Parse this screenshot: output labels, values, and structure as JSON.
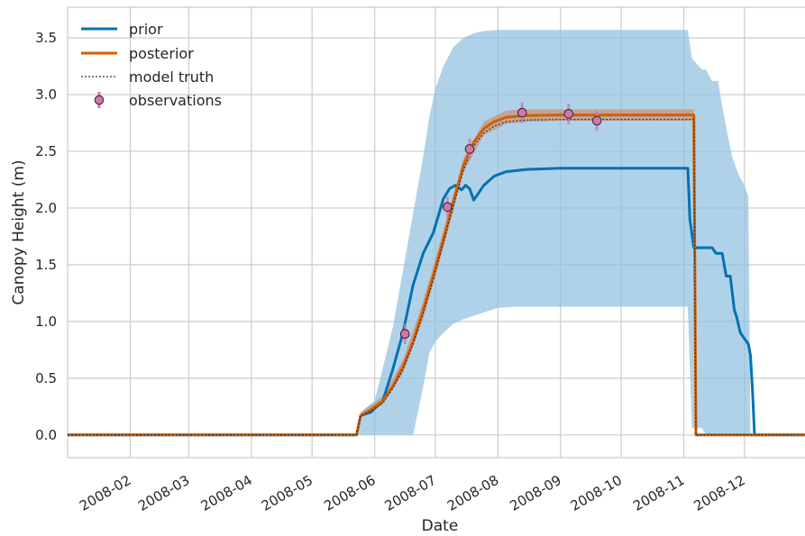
{
  "chart_data": {
    "type": "line",
    "title": "",
    "xlabel": "Date",
    "ylabel": "Canopy Height (m)",
    "x_range": [
      "2008-01-01",
      "2008-12-31"
    ],
    "ylim": [
      -0.2,
      3.77
    ],
    "grid": true,
    "legend_position": "top-left",
    "x_ticks": [
      "2008-02",
      "2008-03",
      "2008-04",
      "2008-05",
      "2008-06",
      "2008-07",
      "2008-08",
      "2008-09",
      "2008-10",
      "2008-11",
      "2008-12"
    ],
    "y_ticks": [
      "0.0",
      "0.5",
      "1.0",
      "1.5",
      "2.0",
      "2.5",
      "3.0",
      "3.5"
    ],
    "legend": [
      "prior",
      "posterior",
      "model truth",
      "observations"
    ],
    "colors": {
      "prior": "#0072b2",
      "prior_band": "#8fbfe0",
      "posterior": "#d55e00",
      "posterior_band": "#c8957a",
      "truth": "#333333",
      "obs_fill": "#cc79a7",
      "obs_edge": "#3a2030",
      "grid": "#cccccc"
    },
    "series": [
      {
        "name": "prior",
        "x": [
          "2008-01-01",
          "2008-05-23",
          "2008-05-25",
          "2008-05-30",
          "2008-06-05",
          "2008-06-10",
          "2008-06-15",
          "2008-06-20",
          "2008-06-25",
          "2008-06-30",
          "2008-07-05",
          "2008-07-08",
          "2008-07-11",
          "2008-07-14",
          "2008-07-16",
          "2008-07-18",
          "2008-07-20",
          "2008-07-22",
          "2008-07-25",
          "2008-07-30",
          "2008-08-05",
          "2008-08-15",
          "2008-09-01",
          "2008-10-01",
          "2008-11-03",
          "2008-11-04",
          "2008-11-06",
          "2008-11-15",
          "2008-11-17",
          "2008-11-20",
          "2008-11-22",
          "2008-11-24",
          "2008-11-26",
          "2008-11-27",
          "2008-11-29",
          "2008-12-01",
          "2008-12-03",
          "2008-12-04",
          "2008-12-05",
          "2008-12-06",
          "2008-12-31"
        ],
        "values": [
          0,
          0,
          0.17,
          0.2,
          0.3,
          0.58,
          0.9,
          1.32,
          1.6,
          1.78,
          2.08,
          2.17,
          2.2,
          2.16,
          2.2,
          2.17,
          2.07,
          2.12,
          2.2,
          2.28,
          2.32,
          2.34,
          2.35,
          2.35,
          2.35,
          1.9,
          1.65,
          1.65,
          1.6,
          1.6,
          1.4,
          1.4,
          1.1,
          1.05,
          0.9,
          0.85,
          0.8,
          0.7,
          0.4,
          0,
          0
        ]
      },
      {
        "name": "posterior",
        "x": [
          "2008-01-01",
          "2008-05-23",
          "2008-05-25",
          "2008-05-30",
          "2008-06-05",
          "2008-06-10",
          "2008-06-15",
          "2008-06-20",
          "2008-06-25",
          "2008-06-30",
          "2008-07-05",
          "2008-07-10",
          "2008-07-15",
          "2008-07-20",
          "2008-07-25",
          "2008-07-30",
          "2008-08-05",
          "2008-08-15",
          "2008-09-01",
          "2008-10-01",
          "2008-11-06",
          "2008-11-07",
          "2008-12-31"
        ],
        "values": [
          0,
          0,
          0.17,
          0.22,
          0.3,
          0.43,
          0.6,
          0.82,
          1.1,
          1.4,
          1.72,
          2.06,
          2.38,
          2.58,
          2.7,
          2.76,
          2.8,
          2.815,
          2.82,
          2.82,
          2.82,
          0,
          0
        ]
      },
      {
        "name": "model truth",
        "x": [
          "2008-01-01",
          "2008-05-23",
          "2008-05-25",
          "2008-05-30",
          "2008-06-05",
          "2008-06-10",
          "2008-06-15",
          "2008-06-20",
          "2008-06-25",
          "2008-06-30",
          "2008-07-05",
          "2008-07-10",
          "2008-07-15",
          "2008-07-20",
          "2008-07-25",
          "2008-07-30",
          "2008-08-05",
          "2008-08-15",
          "2008-09-01",
          "2008-10-01",
          "2008-11-06",
          "2008-11-07",
          "2008-12-31"
        ],
        "values": [
          0,
          0,
          0.17,
          0.21,
          0.28,
          0.41,
          0.58,
          0.8,
          1.07,
          1.37,
          1.7,
          2.02,
          2.34,
          2.55,
          2.66,
          2.72,
          2.76,
          2.775,
          2.78,
          2.78,
          2.78,
          0,
          0
        ]
      }
    ],
    "prior_band": {
      "x": [
        "2008-01-01",
        "2008-05-23",
        "2008-05-25",
        "2008-06-01",
        "2008-06-10",
        "2008-06-15",
        "2008-06-20",
        "2008-06-25",
        "2008-06-28",
        "2008-07-01",
        "2008-07-05",
        "2008-07-10",
        "2008-07-15",
        "2008-07-20",
        "2008-07-25",
        "2008-08-01",
        "2008-08-10",
        "2008-08-20",
        "2008-09-01",
        "2008-10-01",
        "2008-11-03",
        "2008-11-05",
        "2008-11-10",
        "2008-11-12",
        "2008-11-15",
        "2008-11-18",
        "2008-11-20",
        "2008-11-23",
        "2008-11-25",
        "2008-11-28",
        "2008-12-01",
        "2008-12-03",
        "2008-12-04",
        "2008-12-31"
      ],
      "upper": [
        0,
        0,
        0.2,
        0.3,
        0.95,
        1.45,
        1.95,
        2.45,
        2.8,
        3.05,
        3.25,
        3.42,
        3.5,
        3.54,
        3.56,
        3.57,
        3.57,
        3.57,
        3.57,
        3.57,
        3.57,
        3.32,
        3.22,
        3.22,
        3.12,
        3.12,
        2.9,
        2.62,
        2.45,
        2.3,
        2.2,
        2.1,
        0,
        0
      ],
      "lower": [
        0,
        0,
        0,
        0,
        0,
        0,
        0,
        0.42,
        0.72,
        0.82,
        0.9,
        0.98,
        1.02,
        1.05,
        1.08,
        1.12,
        1.13,
        1.13,
        1.13,
        1.13,
        1.13,
        0.06,
        0.06,
        0,
        0,
        0,
        0,
        0,
        0,
        0,
        0,
        0,
        0,
        0
      ]
    },
    "posterior_band": {
      "x": [
        "2008-05-25",
        "2008-06-05",
        "2008-06-15",
        "2008-06-25",
        "2008-07-05",
        "2008-07-15",
        "2008-07-25",
        "2008-08-05",
        "2008-08-15",
        "2008-09-01",
        "2008-10-01",
        "2008-11-06"
      ],
      "upper": [
        0.2,
        0.34,
        0.66,
        1.18,
        1.8,
        2.44,
        2.76,
        2.86,
        2.87,
        2.87,
        2.87,
        2.87
      ],
      "lower": [
        0.15,
        0.27,
        0.54,
        1.02,
        1.64,
        2.32,
        2.64,
        2.74,
        2.76,
        2.77,
        2.77,
        2.77
      ]
    },
    "observations": {
      "x": [
        "2008-06-16",
        "2008-07-07",
        "2008-07-18",
        "2008-08-13",
        "2008-09-05",
        "2008-09-19"
      ],
      "y": [
        0.89,
        2.01,
        2.52,
        2.84,
        2.83,
        2.77
      ],
      "err": [
        0.09,
        0.09,
        0.09,
        0.09,
        0.09,
        0.09
      ]
    }
  }
}
